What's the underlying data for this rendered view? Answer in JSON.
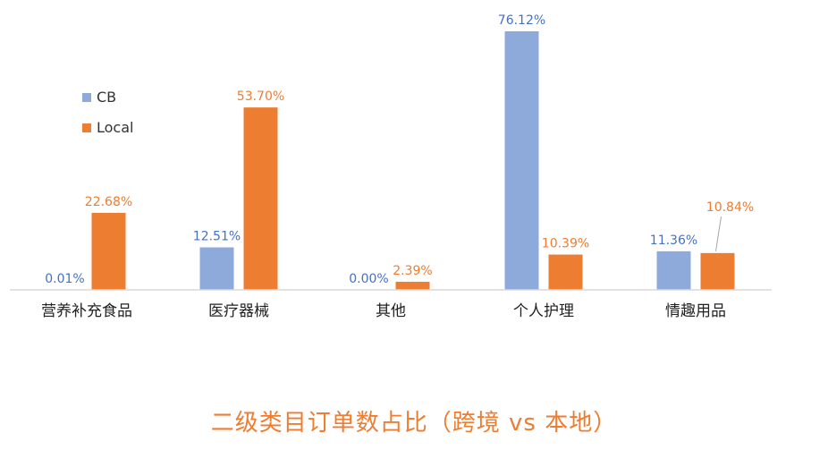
{
  "chart_data": {
    "type": "bar",
    "title": "二级类目订单数占比（跨境 vs 本地）",
    "categories": [
      "营养补充食品",
      "医疗器械",
      "其他",
      "个人护理",
      "情趣用品"
    ],
    "series": [
      {
        "name": "CB",
        "color": "#8eaadb",
        "label_color": "#4472c4",
        "values": [
          0.01,
          12.51,
          0.0,
          76.12,
          11.36
        ],
        "labels": [
          "0.01%",
          "12.51%",
          "0.00%",
          "76.12%",
          "11.36%"
        ]
      },
      {
        "name": "Local",
        "color": "#ed7d31",
        "label_color": "#ed7d31",
        "values": [
          22.68,
          53.7,
          2.39,
          10.39,
          10.84
        ],
        "labels": [
          "22.68%",
          "53.70%",
          "2.39%",
          "10.39%",
          "10.84%"
        ]
      }
    ],
    "ylim": [
      0,
      80
    ],
    "grid": false,
    "legend": "top-left",
    "title_color": "#ed7d31"
  }
}
